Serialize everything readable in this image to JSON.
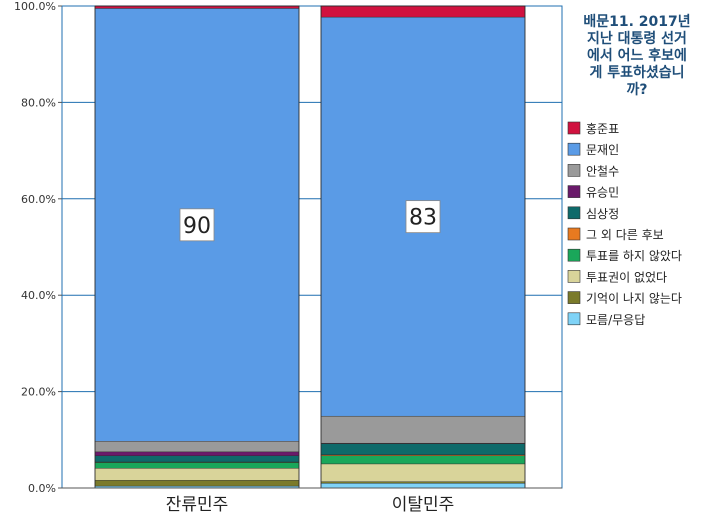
{
  "chart_data": {
    "type": "bar",
    "stacked": true,
    "categories": [
      "잔류민주",
      "이탈민주"
    ],
    "ylim": [
      0,
      100
    ],
    "yticks": [
      "0.0%",
      "20.0%",
      "40.0%",
      "60.0%",
      "80.0%",
      "100.0%"
    ],
    "legend_title_lines": [
      "배문11. 2017년",
      "지난 대통령 선거",
      "에서 어느 후보에",
      "게 투표하셨습니",
      "까?"
    ],
    "legend_position": "right",
    "grid": true,
    "series": [
      {
        "name": "모름/무응답",
        "color": "#7fd3f7",
        "values": [
          0.4,
          1.0
        ]
      },
      {
        "name": "기억이 나지 않는다",
        "color": "#7a7a2a",
        "values": [
          1.2,
          0.3
        ]
      },
      {
        "name": "투표권이 없었다",
        "color": "#d9d49a",
        "values": [
          2.5,
          3.7
        ]
      },
      {
        "name": "투표를 하지 않았다",
        "color": "#1aa75a",
        "values": [
          1.2,
          1.7
        ]
      },
      {
        "name": "그 외 다른 후보",
        "color": "#e87a20",
        "values": [
          0.1,
          0.2
        ]
      },
      {
        "name": "심상정",
        "color": "#0e6a6a",
        "values": [
          1.3,
          2.3
        ]
      },
      {
        "name": "유승민",
        "color": "#6a1a6a",
        "values": [
          0.8,
          0.1
        ]
      },
      {
        "name": "안철수",
        "color": "#9a9a9a",
        "values": [
          2.2,
          5.6
        ]
      },
      {
        "name": "문재인",
        "color": "#5a9be6",
        "values": [
          89.8,
          82.8
        ]
      },
      {
        "name": "홍준표",
        "color": "#d0123f",
        "values": [
          0.5,
          2.3
        ]
      }
    ],
    "legend_order": [
      "홍준표",
      "문재인",
      "안철수",
      "유승민",
      "심상정",
      "그 외 다른 후보",
      "투표를 하지 않았다",
      "투표권이 없었다",
      "기억이 나지 않는다",
      "모름/무응답"
    ],
    "data_labels": [
      {
        "category": "잔류민주",
        "series": "문재인",
        "text": "90"
      },
      {
        "category": "이탈민주",
        "series": "문재인",
        "text": "83"
      }
    ]
  }
}
